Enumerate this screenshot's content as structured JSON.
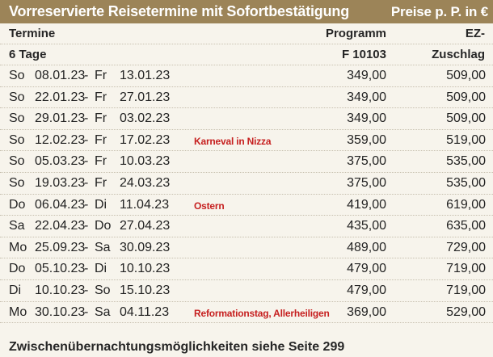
{
  "header": {
    "title": "Vorreservierte Reisetermine mit Sofortbestätigung",
    "prices_note": "Preise p. P. in €"
  },
  "columns": {
    "row1": {
      "termine": "Termine",
      "programm": "Programm",
      "ez": "EZ-"
    },
    "row2": {
      "termine": "6 Tage",
      "programm": "F 10103",
      "ez": "Zuschlag"
    }
  },
  "rows": [
    {
      "day1": "So",
      "date1": "08.01.23",
      "day2": "Fr",
      "date2": "13.01.23",
      "note": "",
      "price": "349,00",
      "ez": "509,00"
    },
    {
      "day1": "So",
      "date1": "22.01.23",
      "day2": "Fr",
      "date2": "27.01.23",
      "note": "",
      "price": "349,00",
      "ez": "509,00"
    },
    {
      "day1": "So",
      "date1": "29.01.23",
      "day2": "Fr",
      "date2": "03.02.23",
      "note": "",
      "price": "349,00",
      "ez": "509,00"
    },
    {
      "day1": "So",
      "date1": "12.02.23",
      "day2": "Fr",
      "date2": "17.02.23",
      "note": "Karneval in Nizza",
      "price": "359,00",
      "ez": "519,00"
    },
    {
      "day1": "So",
      "date1": "05.03.23",
      "day2": "Fr",
      "date2": "10.03.23",
      "note": "",
      "price": "375,00",
      "ez": "535,00"
    },
    {
      "day1": "So",
      "date1": "19.03.23",
      "day2": "Fr",
      "date2": "24.03.23",
      "note": "",
      "price": "375,00",
      "ez": "535,00"
    },
    {
      "day1": "Do",
      "date1": "06.04.23",
      "day2": "Di",
      "date2": "11.04.23",
      "note": "Ostern",
      "price": "419,00",
      "ez": "619,00"
    },
    {
      "day1": "Sa",
      "date1": "22.04.23",
      "day2": "Do",
      "date2": "27.04.23",
      "note": "",
      "price": "435,00",
      "ez": "635,00"
    },
    {
      "day1": "Mo",
      "date1": "25.09.23",
      "day2": "Sa",
      "date2": "30.09.23",
      "note": "",
      "price": "489,00",
      "ez": "729,00"
    },
    {
      "day1": "Do",
      "date1": "05.10.23",
      "day2": "Di",
      "date2": "10.10.23",
      "note": "",
      "price": "479,00",
      "ez": "719,00"
    },
    {
      "day1": "Di",
      "date1": "10.10.23",
      "day2": "So",
      "date2": "15.10.23",
      "note": "",
      "price": "479,00",
      "ez": "719,00"
    },
    {
      "day1": "Mo",
      "date1": "30.10.23",
      "day2": "Sa",
      "date2": "04.11.23",
      "note": "Reformationstag, Allerheiligen",
      "price": "369,00",
      "ez": "529,00"
    }
  ],
  "footer": {
    "text": "Zwischenübernachtungsmöglichkeiten siehe Seite 299"
  }
}
